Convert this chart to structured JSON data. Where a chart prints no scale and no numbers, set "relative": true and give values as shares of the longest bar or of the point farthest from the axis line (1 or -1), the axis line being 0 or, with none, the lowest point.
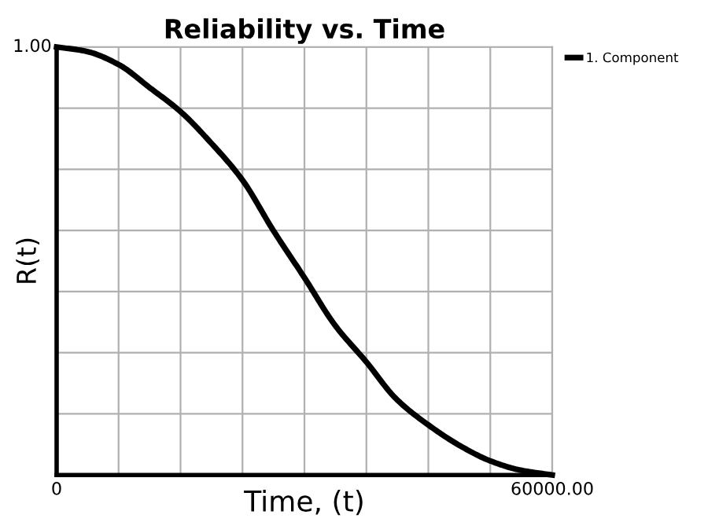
{
  "chart_data": {
    "type": "line",
    "title": "Reliability vs. Time",
    "xlabel": "Time, (t)",
    "ylabel": "R(t)",
    "relative": true,
    "annotations": [
      "1.00"
    ],
    "series": [
      {
        "name": "1. Component",
        "color": "#000000",
        "x": [
          0,
          3560,
          7500,
          11330,
          15000,
          18450,
          22500,
          26210,
          30000,
          33660,
          37500,
          41100,
          45000,
          48870,
          52500,
          56000,
          60000
        ],
        "values": [
          1.0,
          0.99,
          0.959,
          0.904,
          0.849,
          0.781,
          0.689,
          0.572,
          0.461,
          0.351,
          0.264,
          0.178,
          0.117,
          0.068,
          0.033,
          0.012,
          0.0
        ]
      }
    ],
    "xlim": [
      0,
      60000
    ],
    "xticks": [
      {
        "value": 0,
        "label": "0"
      },
      {
        "value": 7500,
        "label": null
      },
      {
        "value": 15000,
        "label": null
      },
      {
        "value": 22500,
        "label": null
      },
      {
        "value": 30000,
        "label": null
      },
      {
        "value": 37500,
        "label": null
      },
      {
        "value": 45000,
        "label": null
      },
      {
        "value": 52500,
        "label": null
      },
      {
        "value": 60000,
        "label": "60000.00"
      }
    ],
    "grid": true,
    "legend": "top right",
    "marker": "none",
    "line_style": "solid"
  }
}
